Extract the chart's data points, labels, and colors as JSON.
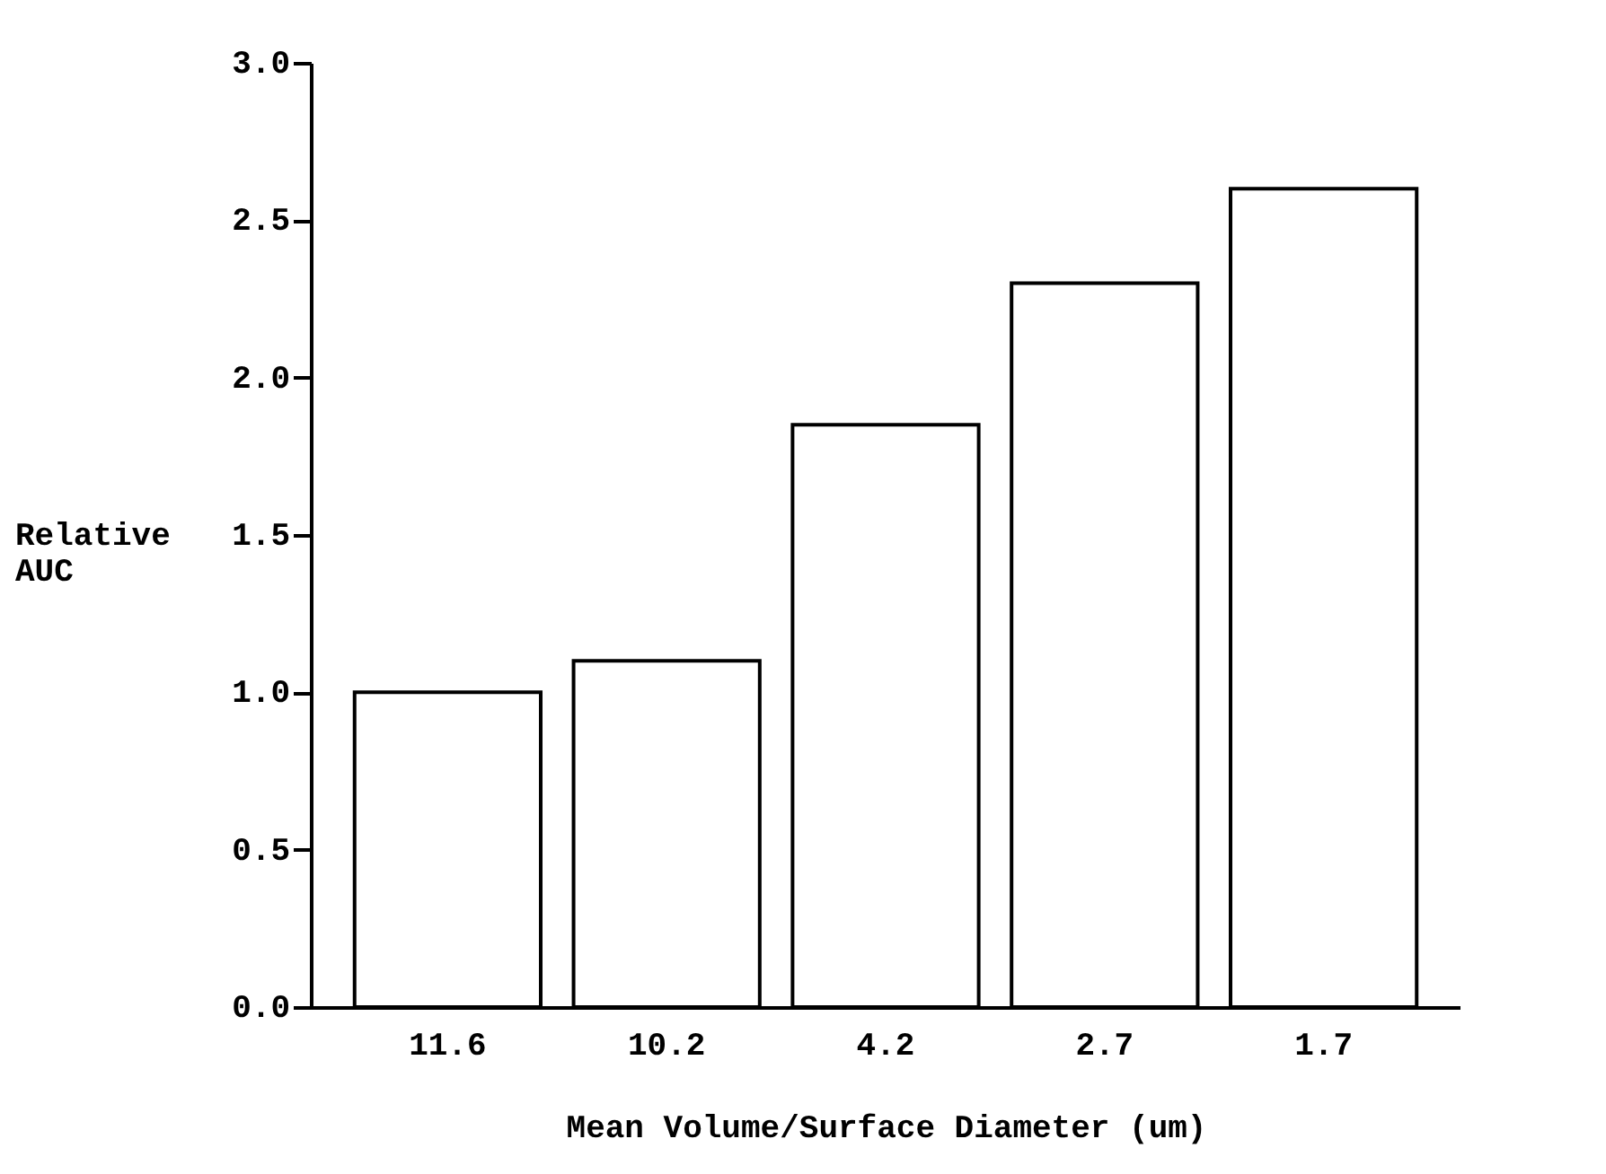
{
  "chart_data": {
    "type": "bar",
    "xlabel": "Mean Volume/Surface Diameter (um)",
    "ylabel": "Relative AUC",
    "categories": [
      "11.6",
      "10.2",
      "4.2",
      "2.7",
      "1.7"
    ],
    "values": [
      1.0,
      1.1,
      1.85,
      2.3,
      2.6
    ],
    "color": "#ffffff",
    "ylim": [
      0,
      3
    ],
    "yticks": [
      {
        "value": 0,
        "label": "0.0"
      },
      {
        "value": 0.5,
        "label": "0.5"
      },
      {
        "value": 1,
        "label": "1.0"
      },
      {
        "value": 1.5,
        "label": "1.5"
      },
      {
        "value": 2,
        "label": "2.0"
      },
      {
        "value": 2.5,
        "label": "2.5"
      },
      {
        "value": 3,
        "label": "3.0"
      }
    ],
    "grid": false
  }
}
